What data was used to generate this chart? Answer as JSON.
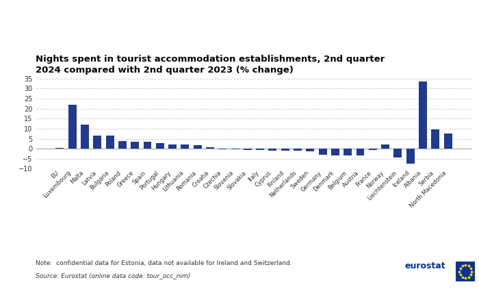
{
  "categories": [
    "EU",
    "Luxembourg",
    "Malta",
    "Latvia",
    "Bulgaria",
    "Poland",
    "Greece",
    "Spain",
    "Portugal",
    "Hungary",
    "Lithuania",
    "Romania",
    "Croatia",
    "Czechia",
    "Slovenia",
    "Slovakia",
    "Italy",
    "Cyprus",
    "Finland",
    "Netherlands",
    "Sweden",
    "Germany",
    "Denmark",
    "Belgium",
    "Austria",
    "France",
    "Norway",
    "Liechtenstein",
    "Iceland",
    "Albania",
    "Serbia",
    "North Macedonia"
  ],
  "values": [
    0.3,
    22.0,
    12.0,
    6.5,
    6.5,
    4.0,
    3.5,
    3.5,
    2.8,
    2.2,
    2.0,
    1.8,
    0.7,
    -0.2,
    -0.3,
    -0.5,
    -0.5,
    -0.8,
    -0.8,
    -1.0,
    -1.2,
    -3.0,
    -3.2,
    -3.2,
    -3.3,
    -0.5,
    2.0,
    -4.5,
    -7.5,
    33.5,
    9.5,
    7.5
  ],
  "bar_color": "#1f3a8f",
  "title": "Nights spent in tourist accommodation establishments, 2nd quarter\n2024 compared with 2nd quarter 2023 (% change)",
  "ylim": [
    -10,
    35
  ],
  "yticks": [
    -10,
    -5,
    0,
    5,
    10,
    15,
    20,
    25,
    30,
    35
  ],
  "note": "Note:  confidential data for Estonia; data not available for Ireland and Switzerland.",
  "source": "Source: Eurostat (online data code: tour_occ_nim)",
  "background_color": "#ffffff",
  "grid_color": "#cccccc",
  "title_fontsize": 9.5,
  "tick_fontsize": 7.0,
  "xtick_fontsize": 6.0,
  "note_fontsize": 6.5
}
